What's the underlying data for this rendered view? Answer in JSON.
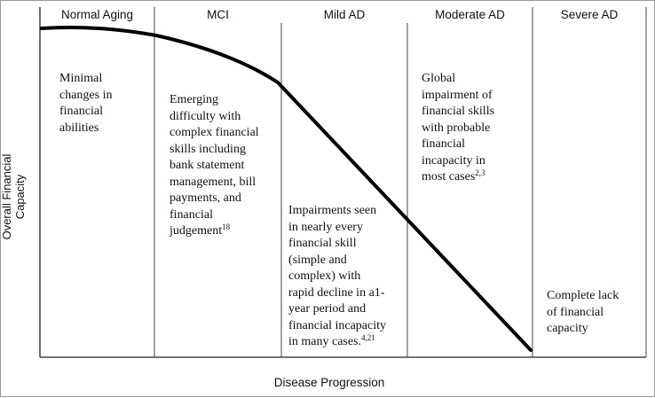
{
  "stages": [
    {
      "label": "Normal Aging",
      "description": [
        "Minimal",
        "changes in",
        "financial",
        "abilities"
      ],
      "ref": ""
    },
    {
      "label": "MCI",
      "description": [
        "Emerging",
        "difficulty with",
        "complex financial",
        "skills including",
        "bank statement",
        "management, bill",
        "payments, and",
        "financial",
        "judgement"
      ],
      "ref": "18"
    },
    {
      "label": "Mild AD",
      "description": [
        "Impairments seen",
        "in nearly every",
        "financial skill",
        "(simple and",
        "complex) with",
        "rapid decline in a1-",
        "year period and",
        "financial incapacity",
        "in many cases."
      ],
      "ref": "4,21"
    },
    {
      "label": "Moderate AD",
      "description": [
        "Global",
        "impairment of",
        "financial skills",
        "with probable",
        "financial",
        "incapacity in",
        "most cases"
      ],
      "ref": "2,3"
    },
    {
      "label": "Severe AD",
      "description": [
        "Complete lack",
        "of financial",
        "capacity"
      ],
      "ref": ""
    }
  ],
  "axes": {
    "x_label": "Disease Progression",
    "y_label": "Overall Financial Capacity"
  },
  "colors": {
    "curve": "#000000",
    "dividers": "#444444",
    "axes": "#222222"
  }
}
